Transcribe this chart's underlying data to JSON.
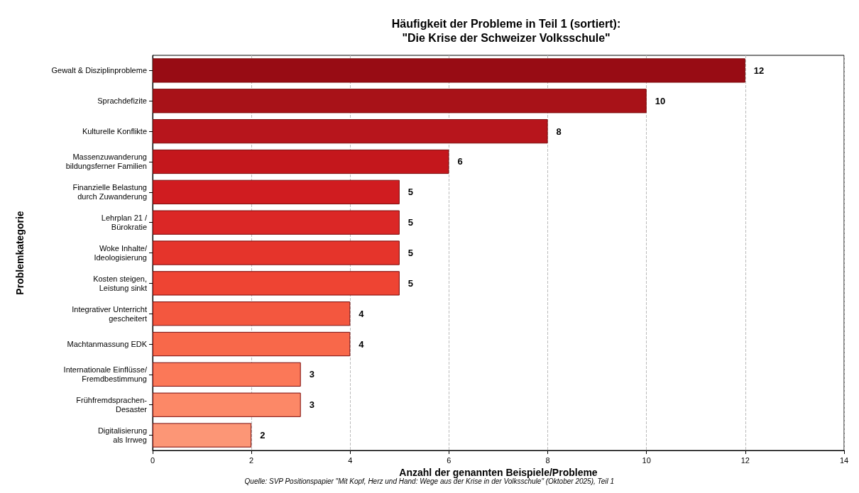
{
  "chart_data": {
    "type": "bar",
    "orientation": "horizontal",
    "title": "Häufigkeit der Probleme in Teil 1 (sortiert):\n\"Die Krise der Schweizer Volksschule\"",
    "xlabel": "Anzahl der genannten Beispiele/Probleme",
    "ylabel": "Problemkategorie",
    "categories": [
      "Gewalt & Disziplinprobleme",
      "Sprachdefizite",
      "Kulturelle Konflikte",
      "Massenzuwanderung\nbildungsferner Familien",
      "Finanzielle Belastung\ndurch Zuwanderung",
      "Lehrplan 21 /\nBürokratie",
      "Woke Inhalte/\nIdeologisierung",
      "Kosten steigen,\nLeistung sinkt",
      "Integrativer Unterricht\ngescheitert",
      "Machtanmassung EDK",
      "Internationale Einflüsse/\nFremdbestimmung",
      "Frühfremdsprachen-\nDesaster",
      "Digitalisierung\nals Irrweg"
    ],
    "values": [
      12,
      10,
      8,
      6,
      5,
      5,
      5,
      5,
      4,
      4,
      3,
      3,
      2
    ],
    "colors": [
      "#980c14",
      "#a81218",
      "#b7151c",
      "#c4171c",
      "#d01c20",
      "#db2726",
      "#e5342b",
      "#ee4433",
      "#f3573f",
      "#f8684a",
      "#fb7858",
      "#fc8867",
      "#fc9676"
    ],
    "xlim": [
      0,
      14
    ],
    "xticks": [
      0,
      2,
      4,
      6,
      8,
      10,
      12,
      14
    ],
    "grid": "x",
    "data_labels": true,
    "annotations": [
      "Quelle: SVP Positionspapier \"Mit Kopf, Herz und Hand: Wege aus der Krise in der Volksschule\" (Oktober 2025), Teil 1"
    ]
  }
}
